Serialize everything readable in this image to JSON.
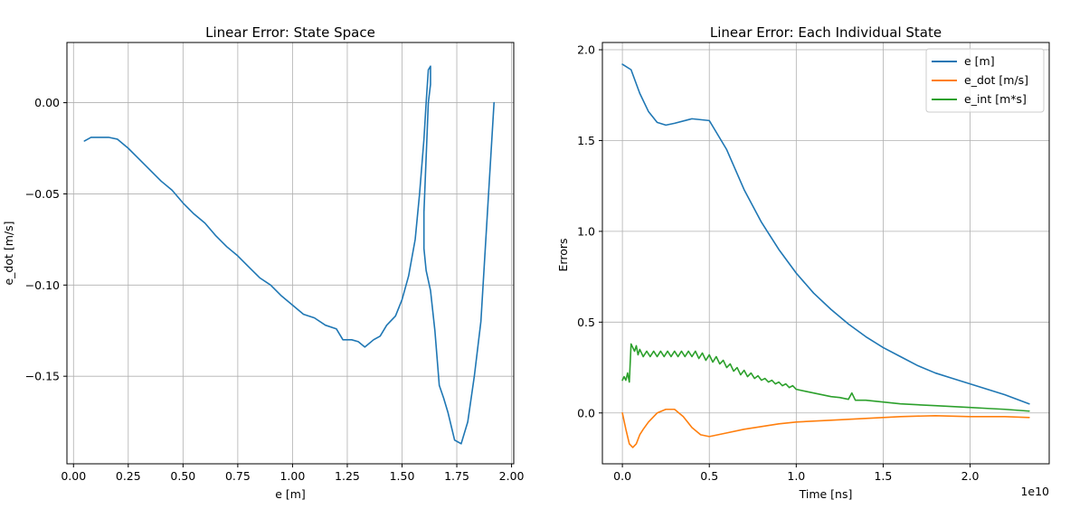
{
  "chart_data": [
    {
      "type": "line",
      "title": "Linear Error: State Space",
      "xlabel": "e [m]",
      "ylabel": "e_dot [m/s]",
      "xlim": [
        -0.03,
        2.01
      ],
      "ylim": [
        -0.198,
        0.033
      ],
      "grid": true,
      "x_ticks": [
        0.0,
        0.25,
        0.5,
        0.75,
        1.0,
        1.25,
        1.5,
        1.75,
        2.0
      ],
      "x_tick_labels": [
        "0.00",
        "0.25",
        "0.50",
        "0.75",
        "1.00",
        "1.25",
        "1.50",
        "1.75",
        "2.00"
      ],
      "y_ticks": [
        0.0,
        -0.05,
        -0.1,
        -0.15
      ],
      "y_tick_labels": [
        "0.00",
        "−0.05",
        "−0.10",
        "−0.15"
      ],
      "series": [
        {
          "color": "#1f77b4",
          "x": [
            0.05,
            0.08,
            0.12,
            0.16,
            0.2,
            0.25,
            0.3,
            0.35,
            0.4,
            0.45,
            0.5,
            0.55,
            0.6,
            0.65,
            0.7,
            0.75,
            0.8,
            0.85,
            0.9,
            0.95,
            1.0,
            1.05,
            1.1,
            1.15,
            1.2,
            1.23,
            1.27,
            1.3,
            1.33,
            1.37,
            1.4,
            1.43,
            1.47,
            1.5,
            1.53,
            1.56,
            1.58,
            1.6,
            1.61,
            1.62,
            1.63,
            1.63,
            1.62,
            1.61,
            1.6,
            1.6,
            1.61,
            1.63,
            1.65,
            1.67,
            1.69,
            1.71,
            1.74,
            1.77,
            1.8,
            1.83,
            1.86,
            1.88,
            1.9,
            1.92
          ],
          "y": [
            -0.021,
            -0.019,
            -0.019,
            -0.019,
            -0.02,
            -0.025,
            -0.031,
            -0.037,
            -0.043,
            -0.048,
            -0.055,
            -0.061,
            -0.066,
            -0.073,
            -0.079,
            -0.084,
            -0.09,
            -0.096,
            -0.1,
            -0.106,
            -0.111,
            -0.116,
            -0.118,
            -0.122,
            -0.124,
            -0.13,
            -0.13,
            -0.131,
            -0.134,
            -0.13,
            -0.128,
            -0.122,
            -0.117,
            -0.108,
            -0.095,
            -0.075,
            -0.05,
            -0.02,
            0.0,
            0.018,
            0.02,
            0.01,
            0.0,
            -0.03,
            -0.06,
            -0.08,
            -0.092,
            -0.103,
            -0.125,
            -0.155,
            -0.162,
            -0.17,
            -0.185,
            -0.187,
            -0.175,
            -0.15,
            -0.12,
            -0.08,
            -0.04,
            0.0
          ]
        }
      ]
    },
    {
      "type": "line",
      "title": "Linear Error: Each Individual State",
      "xlabel": "Time [ns]",
      "ylabel": "Errors",
      "x_offset_label": "1e10",
      "xlim": [
        -0.115,
        2.455
      ],
      "ylim": [
        -0.28,
        2.04
      ],
      "grid": true,
      "legend_position": "top-right",
      "x_ticks": [
        0.0,
        0.5,
        1.0,
        1.5,
        2.0
      ],
      "x_tick_labels": [
        "0.0",
        "0.5",
        "1.0",
        "1.5",
        "2.0"
      ],
      "y_ticks": [
        0.0,
        0.5,
        1.0,
        1.5,
        2.0
      ],
      "y_tick_labels": [
        "0.0",
        "0.5",
        "1.0",
        "1.5",
        "2.0"
      ],
      "series": [
        {
          "name": "e [m]",
          "color": "#1f77b4",
          "x": [
            0.0,
            0.05,
            0.1,
            0.15,
            0.2,
            0.25,
            0.3,
            0.4,
            0.5,
            0.6,
            0.7,
            0.8,
            0.9,
            1.0,
            1.1,
            1.2,
            1.3,
            1.4,
            1.5,
            1.6,
            1.7,
            1.8,
            1.9,
            2.0,
            2.1,
            2.2,
            2.34
          ],
          "y": [
            1.92,
            1.89,
            1.76,
            1.66,
            1.6,
            1.585,
            1.595,
            1.62,
            1.61,
            1.45,
            1.23,
            1.05,
            0.9,
            0.77,
            0.66,
            0.57,
            0.49,
            0.42,
            0.36,
            0.31,
            0.26,
            0.22,
            0.19,
            0.16,
            0.13,
            0.1,
            0.05
          ]
        },
        {
          "name": "e_dot [m/s]",
          "color": "#ff7f0e",
          "x": [
            0.0,
            0.02,
            0.04,
            0.06,
            0.08,
            0.1,
            0.12,
            0.15,
            0.2,
            0.25,
            0.3,
            0.35,
            0.4,
            0.45,
            0.5,
            0.55,
            0.6,
            0.7,
            0.8,
            0.9,
            1.0,
            1.2,
            1.4,
            1.6,
            1.8,
            2.0,
            2.2,
            2.34
          ],
          "y": [
            0.0,
            -0.09,
            -0.17,
            -0.19,
            -0.17,
            -0.12,
            -0.09,
            -0.05,
            0.0,
            0.02,
            0.02,
            -0.02,
            -0.08,
            -0.12,
            -0.13,
            -0.12,
            -0.11,
            -0.09,
            -0.075,
            -0.06,
            -0.05,
            -0.04,
            -0.03,
            -0.02,
            -0.015,
            -0.02,
            -0.02,
            -0.025
          ]
        },
        {
          "name": "e_int [m*s]",
          "color": "#2ca02c",
          "x": [
            0.0,
            0.01,
            0.02,
            0.03,
            0.04,
            0.05,
            0.06,
            0.07,
            0.08,
            0.09,
            0.1,
            0.12,
            0.14,
            0.16,
            0.18,
            0.2,
            0.22,
            0.24,
            0.26,
            0.28,
            0.3,
            0.32,
            0.34,
            0.36,
            0.38,
            0.4,
            0.42,
            0.44,
            0.46,
            0.48,
            0.5,
            0.52,
            0.54,
            0.56,
            0.58,
            0.6,
            0.62,
            0.64,
            0.66,
            0.68,
            0.7,
            0.72,
            0.74,
            0.76,
            0.78,
            0.8,
            0.82,
            0.84,
            0.86,
            0.88,
            0.9,
            0.92,
            0.94,
            0.96,
            0.98,
            1.0,
            1.05,
            1.1,
            1.15,
            1.2,
            1.25,
            1.3,
            1.32,
            1.34,
            1.4,
            1.5,
            1.6,
            1.7,
            1.8,
            1.9,
            2.0,
            2.1,
            2.2,
            2.34
          ],
          "y": [
            0.18,
            0.2,
            0.18,
            0.22,
            0.17,
            0.38,
            0.36,
            0.34,
            0.37,
            0.32,
            0.35,
            0.31,
            0.34,
            0.31,
            0.34,
            0.31,
            0.34,
            0.31,
            0.34,
            0.31,
            0.34,
            0.31,
            0.34,
            0.31,
            0.34,
            0.31,
            0.34,
            0.3,
            0.33,
            0.29,
            0.32,
            0.28,
            0.31,
            0.27,
            0.29,
            0.25,
            0.27,
            0.23,
            0.25,
            0.21,
            0.235,
            0.2,
            0.22,
            0.19,
            0.205,
            0.18,
            0.19,
            0.17,
            0.18,
            0.16,
            0.17,
            0.15,
            0.16,
            0.14,
            0.15,
            0.13,
            0.12,
            0.11,
            0.1,
            0.09,
            0.085,
            0.075,
            0.11,
            0.07,
            0.07,
            0.06,
            0.05,
            0.045,
            0.04,
            0.035,
            0.03,
            0.025,
            0.02,
            0.01
          ]
        }
      ]
    }
  ]
}
